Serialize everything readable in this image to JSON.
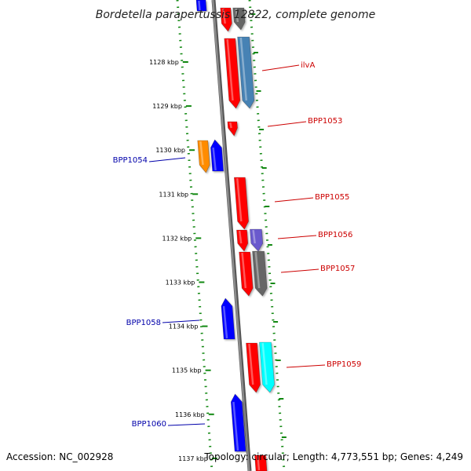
{
  "title": "Bordetella parapertussis 12822, complete genome",
  "footer": {
    "accession": "Accession: NC_002928",
    "topology": "Topology: circular; Length: 4,773,551 bp; Genes: 4,249"
  },
  "scale": {
    "unit": "kbp",
    "ticks": [
      "1128 kbp",
      "1129 kbp",
      "1130 kbp",
      "1131 kbp",
      "1132 kbp",
      "1133 kbp",
      "1134 kbp",
      "1135 kbp",
      "1136 kbp",
      "1137 kbp"
    ]
  },
  "colors": {
    "backbone": "#8c8c8c",
    "ruler_dots": "#118811",
    "label_right": "#cc0000",
    "label_left": "#0000aa",
    "red": "#ff0000",
    "steelblue": "#4682b4",
    "orange": "#ff8c00",
    "blue": "#0000ff",
    "slateblue": "#6a5acd",
    "gray": "#666666",
    "cyan": "#00ffff"
  },
  "genes": [
    {
      "label": "ilvA",
      "side": "right"
    },
    {
      "label": "BPP1053",
      "side": "right"
    },
    {
      "label": "BPP1054",
      "side": "left"
    },
    {
      "label": "BPP1055",
      "side": "right"
    },
    {
      "label": "BPP1056",
      "side": "right"
    },
    {
      "label": "BPP1057",
      "side": "right"
    },
    {
      "label": "BPP1058",
      "side": "left"
    },
    {
      "label": "BPP1059",
      "side": "right"
    },
    {
      "label": "BPP1060",
      "side": "left"
    }
  ]
}
